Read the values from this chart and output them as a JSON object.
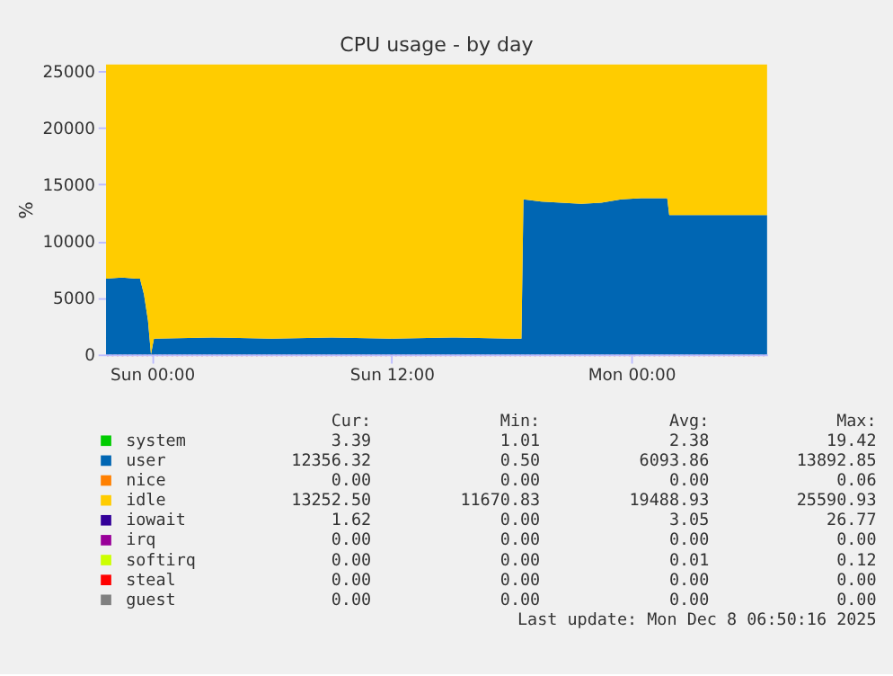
{
  "chart_data": {
    "type": "area",
    "stacked": true,
    "title": "CPU usage - by day",
    "ylabel": "%",
    "x": [
      "2025-12-06T21:42",
      "2025-12-06T22:30",
      "2025-12-06T23:12",
      "2025-12-06T23:24",
      "2025-12-06T23:36",
      "2025-12-06T23:48",
      "2025-12-06T23:57",
      "2025-12-07T00:06",
      "2025-12-07T03:00",
      "2025-12-07T06:00",
      "2025-12-07T09:00",
      "2025-12-07T12:00",
      "2025-12-07T15:00",
      "2025-12-07T18:00",
      "2025-12-07T18:30",
      "2025-12-07T18:36",
      "2025-12-07T19:30",
      "2025-12-07T20:30",
      "2025-12-07T21:30",
      "2025-12-07T22:30",
      "2025-12-07T23:30",
      "2025-12-08T00:30",
      "2025-12-08T01:48",
      "2025-12-08T01:54",
      "2025-12-08T03:00",
      "2025-12-08T04:30",
      "2025-12-08T06:00",
      "2025-12-08T06:48"
    ],
    "xlim": [
      "2025-12-06T21:42",
      "2025-12-08T06:48"
    ],
    "xticks": [
      {
        "value": "2025-12-07T00:00",
        "label": "Sun 00:00"
      },
      {
        "value": "2025-12-07T12:00",
        "label": "Sun 12:00"
      },
      {
        "value": "2025-12-08T00:00",
        "label": "Mon 00:00"
      }
    ],
    "ylim": [
      0,
      25600
    ],
    "yticks": [
      0,
      5000,
      10000,
      15000,
      20000,
      25000
    ],
    "grid": true,
    "legend": "bottom",
    "series": [
      {
        "name": "system",
        "color": "#00cc00",
        "values": [
          null,
          null,
          null,
          null,
          null,
          null,
          null,
          null,
          null,
          null,
          null,
          null,
          null,
          null,
          null,
          null,
          null,
          null,
          null,
          null,
          null,
          null,
          null,
          null,
          null,
          null,
          null,
          null
        ]
      },
      {
        "name": "user",
        "color": "#0066b3",
        "values": [
          6700,
          6800,
          6700,
          6700,
          5300,
          3000,
          0,
          1400,
          1500,
          1400,
          1500,
          1400,
          1500,
          1400,
          1400,
          13700,
          13500,
          13400,
          13300,
          13400,
          13700,
          13800,
          13800,
          12300,
          12300,
          12300,
          12300,
          12300
        ]
      },
      {
        "name": "nice",
        "color": "#ff8000",
        "values": [
          null,
          null,
          null,
          null,
          null,
          null,
          null,
          null,
          null,
          null,
          null,
          null,
          null,
          null,
          null,
          null,
          null,
          null,
          null,
          null,
          null,
          null,
          null,
          null,
          null,
          null,
          null,
          null
        ]
      },
      {
        "name": "idle",
        "color": "#ffcc00",
        "values": [
          18900,
          18800,
          18900,
          18900,
          20300,
          22600,
          25600,
          24200,
          24100,
          24200,
          24100,
          24200,
          24100,
          24200,
          24200,
          11900,
          12100,
          12200,
          12300,
          12200,
          11900,
          11800,
          11800,
          13300,
          13300,
          13300,
          13300,
          13300
        ]
      },
      {
        "name": "iowait",
        "color": "#330099",
        "values": [
          null,
          null,
          null,
          null,
          null,
          null,
          null,
          null,
          null,
          null,
          null,
          null,
          null,
          null,
          null,
          null,
          null,
          null,
          null,
          null,
          null,
          null,
          null,
          null,
          null,
          null,
          null,
          null
        ]
      },
      {
        "name": "irq",
        "color": "#990099",
        "values": [
          null,
          null,
          null,
          null,
          null,
          null,
          null,
          null,
          null,
          null,
          null,
          null,
          null,
          null,
          null,
          null,
          null,
          null,
          null,
          null,
          null,
          null,
          null,
          null,
          null,
          null,
          null,
          null
        ]
      },
      {
        "name": "softirq",
        "color": "#ccff00",
        "values": [
          null,
          null,
          null,
          null,
          null,
          null,
          null,
          null,
          null,
          null,
          null,
          null,
          null,
          null,
          null,
          null,
          null,
          null,
          null,
          null,
          null,
          null,
          null,
          null,
          null,
          null,
          null,
          null
        ]
      },
      {
        "name": "steal",
        "color": "#ff0000",
        "values": [
          null,
          null,
          null,
          null,
          null,
          null,
          null,
          null,
          null,
          null,
          null,
          null,
          null,
          null,
          null,
          null,
          null,
          null,
          null,
          null,
          null,
          null,
          null,
          null,
          null,
          null,
          null,
          null
        ]
      },
      {
        "name": "guest",
        "color": "#808080",
        "values": [
          null,
          null,
          null,
          null,
          null,
          null,
          null,
          null,
          null,
          null,
          null,
          null,
          null,
          null,
          null,
          null,
          null,
          null,
          null,
          null,
          null,
          null,
          null,
          null,
          null,
          null,
          null,
          null
        ]
      }
    ],
    "annotations": [
      "Cur:",
      "Min:",
      "Avg:",
      "Max:",
      "3.39",
      "1.01",
      "2.38",
      "19.42",
      "12356.32",
      "0.50",
      "6093.86",
      "13892.85",
      "0.00",
      "0.00",
      "0.00",
      "0.06",
      "13252.50",
      "11670.83",
      "19488.93",
      "25590.93",
      "1.62",
      "0.00",
      "3.05",
      "26.77",
      "0.00",
      "0.00",
      "0.00",
      "0.00",
      "0.00",
      "0.00",
      "0.01",
      "0.12",
      "0.00",
      "0.00",
      "0.00",
      "0.00",
      "0.00",
      "0.00",
      "0.00",
      "0.00",
      "Last update: Mon Dec  8 06:50:16 2025"
    ]
  }
}
